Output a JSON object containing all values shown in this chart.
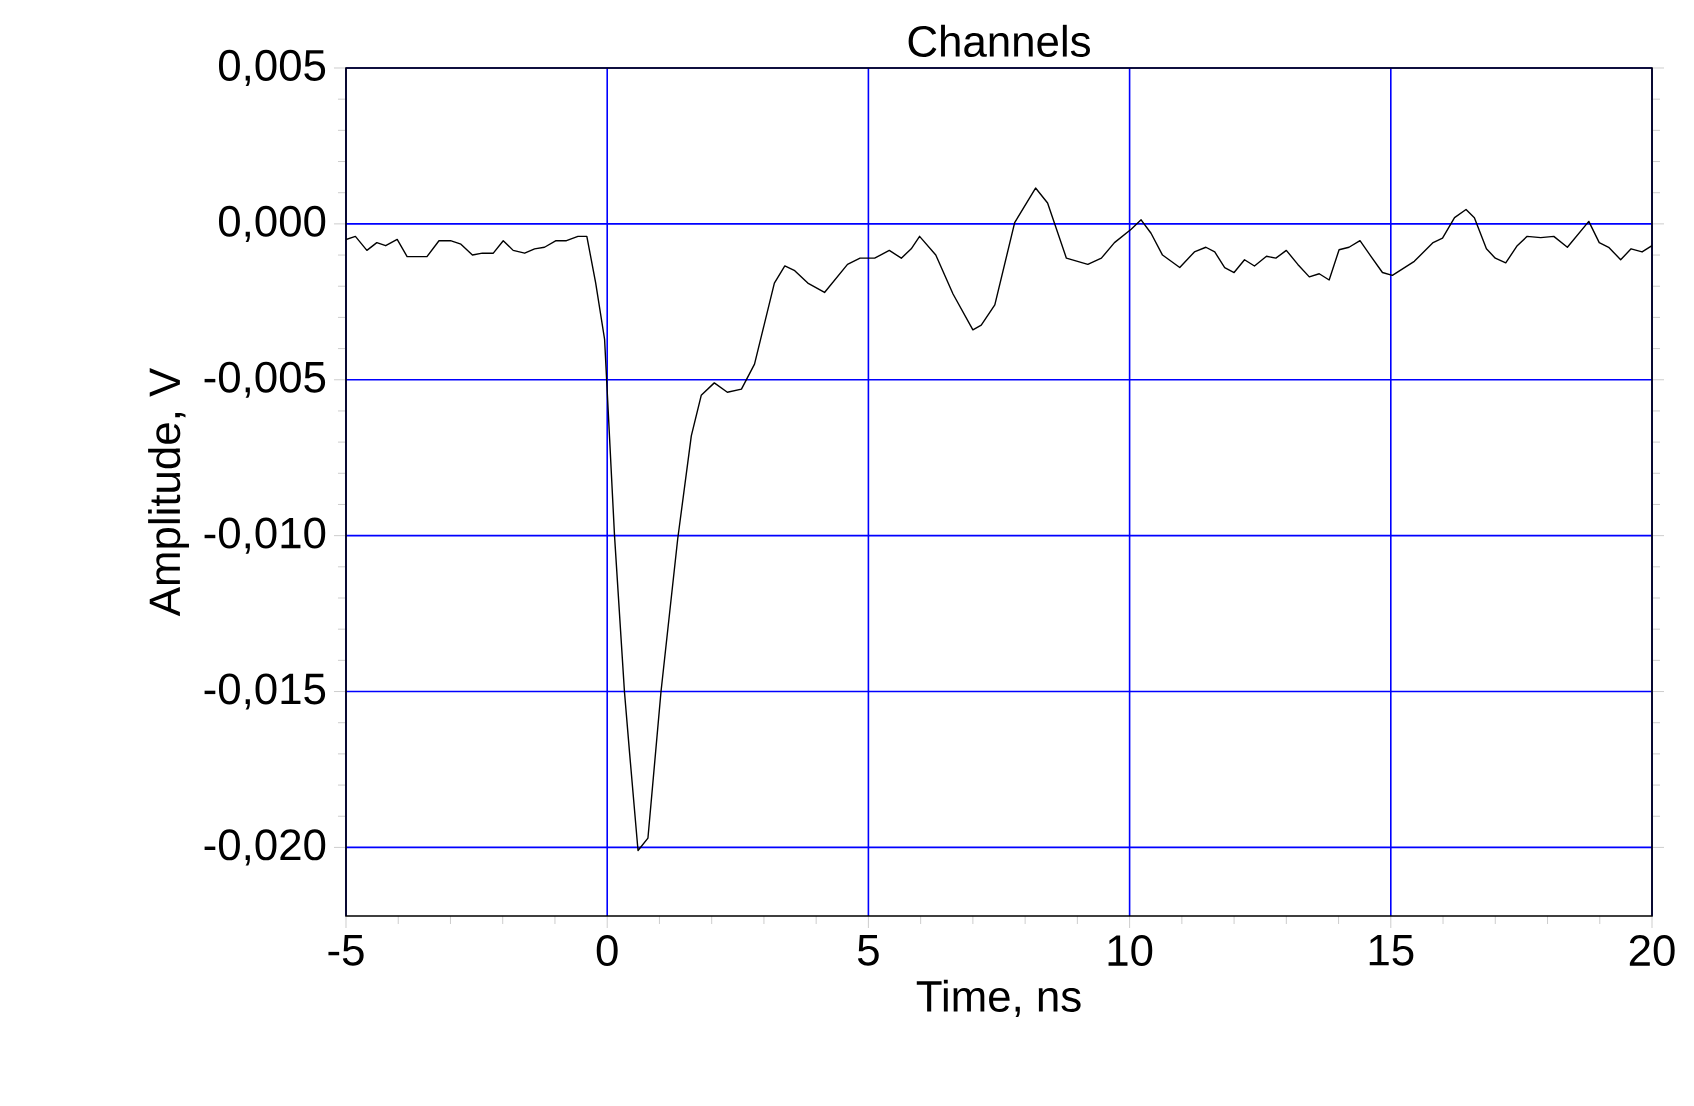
{
  "chart_data": {
    "type": "line",
    "title": "Channels",
    "xlabel": "Time, ns",
    "ylabel": "Amplitude, V",
    "xlim": [
      -5,
      20
    ],
    "ylim": [
      -0.0222,
      0.005
    ],
    "xticks": [
      -5,
      0,
      5,
      10,
      15,
      20
    ],
    "yticks": [
      {
        "value": -0.02,
        "label": "-0,020"
      },
      {
        "value": -0.015,
        "label": "-0,015"
      },
      {
        "value": -0.01,
        "label": "-0,010"
      },
      {
        "value": -0.005,
        "label": "-0,005"
      },
      {
        "value": 0,
        "label": "0,000"
      },
      {
        "value": 0.005,
        "label": "0,005"
      }
    ],
    "grid": true,
    "marker": "none",
    "line_style": "solid",
    "series": [
      {
        "color": "#000000",
        "x": [
          -5,
          -4.82,
          -4.6,
          -4.41,
          -4.24,
          -4.02,
          -3.83,
          -3.45,
          -3.22,
          -3.0,
          -2.8,
          -2.58,
          -2.39,
          -2.18,
          -1.99,
          -1.8,
          -1.58,
          -1.39,
          -1.2,
          -0.98,
          -0.78,
          -0.56,
          -0.39,
          -0.22,
          -0.05,
          0.14,
          0.33,
          0.43,
          0.59,
          0.78,
          1.03,
          1.35,
          1.61,
          1.8,
          2.05,
          2.3,
          2.57,
          2.82,
          3.2,
          3.4,
          3.59,
          3.84,
          4.16,
          4.6,
          4.84,
          5.12,
          5.4,
          5.63,
          5.82,
          5.98,
          6.29,
          6.62,
          7.0,
          7.16,
          7.42,
          7.8,
          8.2,
          8.43,
          8.79,
          9.2,
          9.46,
          9.71,
          10.03,
          10.22,
          10.41,
          10.63,
          10.96,
          11.24,
          11.46,
          11.63,
          11.82,
          12.0,
          12.2,
          12.39,
          12.62,
          12.8,
          13.0,
          13.22,
          13.44,
          13.63,
          13.82,
          14.01,
          14.2,
          14.41,
          14.62,
          14.84,
          15.03,
          15.45,
          15.81,
          15.99,
          16.22,
          16.44,
          16.6,
          16.83,
          17.0,
          17.2,
          17.42,
          17.61,
          17.87,
          18.12,
          18.38,
          18.79,
          18.99,
          19.17,
          19.4,
          19.6,
          19.81,
          20.0
        ],
        "values": [
          -0.0005,
          -0.0004,
          -0.00085,
          -0.0006,
          -0.0007,
          -0.0005,
          -0.00105,
          -0.00105,
          -0.00054,
          -0.00054,
          -0.00065,
          -0.001,
          -0.00094,
          -0.00094,
          -0.00054,
          -0.00085,
          -0.00094,
          -0.0008,
          -0.00075,
          -0.00054,
          -0.00054,
          -0.0004,
          -0.0004,
          -0.0019,
          -0.0037,
          -0.01,
          -0.015,
          -0.017,
          -0.0201,
          -0.0197,
          -0.015,
          -0.0101,
          -0.0068,
          -0.0055,
          -0.0051,
          -0.0054,
          -0.0053,
          -0.0045,
          -0.0019,
          -0.00135,
          -0.0015,
          -0.0019,
          -0.0022,
          -0.0013,
          -0.0011,
          -0.0011,
          -0.00085,
          -0.0011,
          -0.0008,
          -0.0004,
          -0.001,
          -0.00225,
          -0.0034,
          -0.00325,
          -0.0026,
          4e-05,
          0.00115,
          0.00067,
          -0.0011,
          -0.0013,
          -0.0011,
          -0.0006,
          -0.00017,
          0.00013,
          -0.0003,
          -0.001,
          -0.0014,
          -0.0009,
          -0.00075,
          -0.0009,
          -0.0014,
          -0.00156,
          -0.00115,
          -0.00135,
          -0.00104,
          -0.0011,
          -0.00085,
          -0.0013,
          -0.0017,
          -0.0016,
          -0.0018,
          -0.00083,
          -0.00075,
          -0.00054,
          -0.00104,
          -0.00156,
          -0.00165,
          -0.0012,
          -0.0006,
          -0.00046,
          0.0002,
          0.00046,
          0.0002,
          -0.0008,
          -0.0011,
          -0.00125,
          -0.0007,
          -0.0004,
          -0.00044,
          -0.0004,
          -0.00075,
          8e-05,
          -0.0006,
          -0.00075,
          -0.00115,
          -0.0008,
          -0.0009,
          -0.0007
        ]
      }
    ]
  }
}
